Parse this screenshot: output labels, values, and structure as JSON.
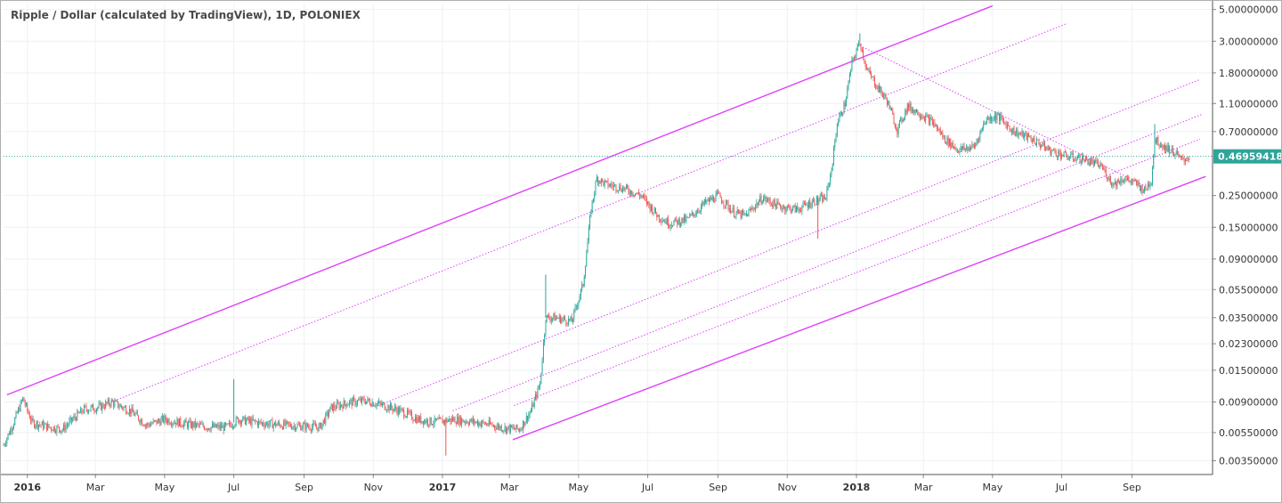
{
  "header": {
    "title": "Ripple / Dollar (calculated by TradingView), 1D, POLONIEX"
  },
  "colors": {
    "up": "#26a69a",
    "down": "#ef5350",
    "channel": "#e040fb",
    "last_price_line": "#2ea59a",
    "grid": "#eef1f4",
    "axis": "#333333"
  },
  "chart_data": {
    "type": "candlestick",
    "title": "Ripple / Dollar (calculated by TradingView), 1D, POLONIEX",
    "y_scale": "log",
    "ylim": [
      0.0028,
      5.5
    ],
    "y_ticks": [
      "5.00000000",
      "3.00000000",
      "1.80000000",
      "1.10000000",
      "0.70000000",
      "0.25000000",
      "0.15000000",
      "0.09000000",
      "0.05500000",
      "0.03500000",
      "0.02300000",
      "0.01500000",
      "0.00900000",
      "0.00550000",
      "0.00350000"
    ],
    "x_ticks": [
      {
        "label": "2016",
        "date": "2016-01-01",
        "bold": true
      },
      {
        "label": "Mar",
        "date": "2016-03-01",
        "bold": false
      },
      {
        "label": "May",
        "date": "2016-05-01",
        "bold": false
      },
      {
        "label": "Jul",
        "date": "2016-07-01",
        "bold": false
      },
      {
        "label": "Sep",
        "date": "2016-09-01",
        "bold": false
      },
      {
        "label": "Nov",
        "date": "2016-11-01",
        "bold": false
      },
      {
        "label": "2017",
        "date": "2017-01-01",
        "bold": true
      },
      {
        "label": "Mar",
        "date": "2017-03-01",
        "bold": false
      },
      {
        "label": "May",
        "date": "2017-05-01",
        "bold": false
      },
      {
        "label": "Jul",
        "date": "2017-07-01",
        "bold": false
      },
      {
        "label": "Sep",
        "date": "2017-09-01",
        "bold": false
      },
      {
        "label": "Nov",
        "date": "2017-11-01",
        "bold": false
      },
      {
        "label": "2018",
        "date": "2018-01-01",
        "bold": true
      },
      {
        "label": "Mar",
        "date": "2018-03-01",
        "bold": false
      },
      {
        "label": "May",
        "date": "2018-05-01",
        "bold": false
      },
      {
        "label": "Jul",
        "date": "2018-07-01",
        "bold": false
      },
      {
        "label": "Sep",
        "date": "2018-09-01",
        "bold": false
      }
    ],
    "x_range": [
      "2015-12-11",
      "2018-11-11"
    ],
    "last_price": 0.46959418,
    "last_price_label": "0.46959418",
    "price_path": [
      [
        "2015-12-11",
        0.0045
      ],
      [
        "2015-12-20",
        0.0065
      ],
      [
        "2015-12-28",
        0.0095
      ],
      [
        "2016-01-05",
        0.0065
      ],
      [
        "2016-01-20",
        0.006
      ],
      [
        "2016-02-01",
        0.0058
      ],
      [
        "2016-02-10",
        0.0068
      ],
      [
        "2016-02-20",
        0.008
      ],
      [
        "2016-03-05",
        0.0083
      ],
      [
        "2016-03-15",
        0.009
      ],
      [
        "2016-04-01",
        0.0078
      ],
      [
        "2016-04-15",
        0.0062
      ],
      [
        "2016-05-01",
        0.0068
      ],
      [
        "2016-05-20",
        0.0063
      ],
      [
        "2016-06-10",
        0.006
      ],
      [
        "2016-06-25",
        0.006
      ],
      [
        "2016-07-05",
        0.0068
      ],
      [
        "2016-07-25",
        0.0064
      ],
      [
        "2016-08-15",
        0.0062
      ],
      [
        "2016-09-01",
        0.0061
      ],
      [
        "2016-09-15",
        0.006
      ],
      [
        "2016-09-25",
        0.0082
      ],
      [
        "2016-10-10",
        0.0089
      ],
      [
        "2016-10-25",
        0.0092
      ],
      [
        "2016-11-10",
        0.0085
      ],
      [
        "2016-11-25",
        0.0078
      ],
      [
        "2016-12-10",
        0.0068
      ],
      [
        "2016-12-25",
        0.0065
      ],
      [
        "2017-01-10",
        0.0068
      ],
      [
        "2017-01-25",
        0.0066
      ],
      [
        "2017-02-10",
        0.0063
      ],
      [
        "2017-02-25",
        0.0059
      ],
      [
        "2017-03-10",
        0.0058
      ],
      [
        "2017-03-20",
        0.0078
      ],
      [
        "2017-03-28",
        0.012
      ],
      [
        "2017-04-02",
        0.035
      ],
      [
        "2017-04-10",
        0.035
      ],
      [
        "2017-04-25",
        0.033
      ],
      [
        "2017-05-05",
        0.06
      ],
      [
        "2017-05-12",
        0.2
      ],
      [
        "2017-05-17",
        0.33
      ],
      [
        "2017-05-25",
        0.3
      ],
      [
        "2017-06-10",
        0.28
      ],
      [
        "2017-06-25",
        0.25
      ],
      [
        "2017-07-10",
        0.18
      ],
      [
        "2017-07-20",
        0.16
      ],
      [
        "2017-08-05",
        0.17
      ],
      [
        "2017-08-20",
        0.22
      ],
      [
        "2017-09-01",
        0.25
      ],
      [
        "2017-09-15",
        0.19
      ],
      [
        "2017-09-25",
        0.18
      ],
      [
        "2017-10-10",
        0.24
      ],
      [
        "2017-10-25",
        0.21
      ],
      [
        "2017-11-10",
        0.2
      ],
      [
        "2017-11-25",
        0.23
      ],
      [
        "2017-12-05",
        0.24
      ],
      [
        "2017-12-10",
        0.38
      ],
      [
        "2017-12-15",
        0.8
      ],
      [
        "2017-12-22",
        1.1
      ],
      [
        "2017-12-28",
        2.1
      ],
      [
        "2018-01-04",
        3.0
      ],
      [
        "2018-01-10",
        1.9
      ],
      [
        "2018-01-18",
        1.5
      ],
      [
        "2018-01-28",
        1.15
      ],
      [
        "2018-02-06",
        0.72
      ],
      [
        "2018-02-15",
        1.05
      ],
      [
        "2018-02-25",
        0.95
      ],
      [
        "2018-03-10",
        0.8
      ],
      [
        "2018-03-20",
        0.62
      ],
      [
        "2018-04-01",
        0.52
      ],
      [
        "2018-04-15",
        0.55
      ],
      [
        "2018-04-25",
        0.85
      ],
      [
        "2018-05-05",
        0.9
      ],
      [
        "2018-05-20",
        0.7
      ],
      [
        "2018-06-05",
        0.62
      ],
      [
        "2018-06-20",
        0.52
      ],
      [
        "2018-07-05",
        0.47
      ],
      [
        "2018-07-20",
        0.45
      ],
      [
        "2018-08-05",
        0.4
      ],
      [
        "2018-08-15",
        0.3
      ],
      [
        "2018-08-25",
        0.33
      ],
      [
        "2018-09-05",
        0.3
      ],
      [
        "2018-09-12",
        0.27
      ],
      [
        "2018-09-18",
        0.32
      ],
      [
        "2018-09-21",
        0.62
      ],
      [
        "2018-09-28",
        0.56
      ],
      [
        "2018-10-08",
        0.5
      ],
      [
        "2018-10-15",
        0.44
      ],
      [
        "2018-10-22",
        0.47
      ]
    ],
    "spikes": [
      {
        "date": "2016-07-01",
        "high": 0.013
      },
      {
        "date": "2017-01-04",
        "low": 0.0038
      },
      {
        "date": "2017-04-02",
        "high": 0.07
      },
      {
        "date": "2017-11-28",
        "low": 0.125
      },
      {
        "date": "2018-01-04",
        "high": 3.4
      },
      {
        "date": "2018-09-21",
        "high": 0.79
      }
    ],
    "channel_lines": [
      {
        "style": "solid",
        "start": [
          "2015-12-14",
          0.0101
        ],
        "end": [
          "2018-05-01",
          5.3
        ]
      },
      {
        "style": "dotted",
        "start": [
          "2016-03-15",
          0.009
        ],
        "end": [
          "2018-07-06",
          4.0
        ]
      },
      {
        "style": "dotted",
        "start": [
          "2016-11-05",
          0.0085
        ],
        "end": [
          "2018-10-31",
          1.62
        ]
      },
      {
        "style": "dotted",
        "start": [
          "2017-01-10",
          0.0078
        ],
        "end": [
          "2018-11-01",
          0.92
        ]
      },
      {
        "style": "dotted",
        "start": [
          "2017-03-05",
          0.0085
        ],
        "end": [
          "2018-10-31",
          0.62
        ]
      },
      {
        "style": "solid",
        "start": [
          "2017-03-04",
          0.0049
        ],
        "end": [
          "2018-11-05",
          0.34
        ]
      },
      {
        "style": "dotted",
        "start": [
          "2018-01-04",
          2.8
        ],
        "end": [
          "2018-09-17",
          0.28
        ]
      }
    ]
  }
}
